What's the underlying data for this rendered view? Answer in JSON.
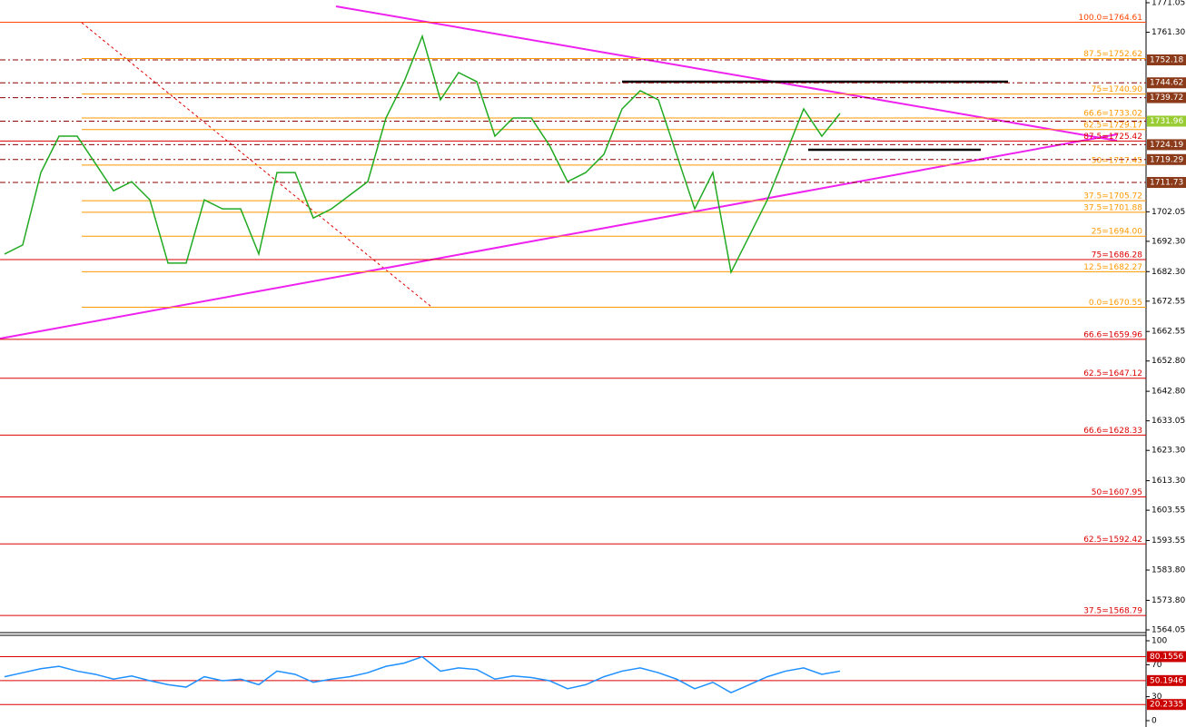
{
  "chart_data": [
    {
      "type": "line",
      "color": "#22aa22",
      "values": [
        1688.1,
        1691.1,
        1715.0,
        1727.0,
        1727.0,
        1718.0,
        1709.0,
        1712.0,
        1706.0,
        1685.1,
        1685.1,
        1706.0,
        1703.0,
        1703.0,
        1688.1,
        1715.0,
        1715.0,
        1700.0,
        1703.0,
        1707.5,
        1712.0,
        1733.0,
        1745.0,
        1760.0,
        1739.0,
        1748.0,
        1745.0,
        1727.0,
        1733.0,
        1733.0,
        1724.0,
        1712.0,
        1715.0,
        1721.0,
        1736.0,
        1742.0,
        1739.0,
        1721.0,
        1703.0,
        1715.0,
        1682.1,
        1694.0,
        1706.0,
        1721.0,
        1736.0,
        1727.0,
        1734.5
      ],
      "ylim": [
        1564.05,
        1771.05
      ],
      "yticks": [
        {
          "value": 1771.05,
          "label": "1771.05"
        },
        {
          "value": 1761.3,
          "label": "1761.30"
        },
        {
          "value": 1702.05,
          "label": "1702.05"
        },
        {
          "value": 1692.3,
          "label": "1692.30"
        },
        {
          "value": 1682.3,
          "label": "1682.30"
        },
        {
          "value": 1672.55,
          "label": "1672.55"
        },
        {
          "value": 1662.55,
          "label": "1662.55"
        },
        {
          "value": 1652.8,
          "label": "1652.80"
        },
        {
          "value": 1642.8,
          "label": "1642.80"
        },
        {
          "value": 1633.05,
          "label": "1633.05"
        },
        {
          "value": 1623.3,
          "label": "1623.30"
        },
        {
          "value": 1613.3,
          "label": "1613.30"
        },
        {
          "value": 1603.55,
          "label": "1603.55"
        },
        {
          "value": 1593.55,
          "label": "1593.55"
        },
        {
          "value": 1583.8,
          "label": "1583.80"
        },
        {
          "value": 1573.8,
          "label": "1573.80"
        },
        {
          "value": 1564.05,
          "label": "1564.05"
        }
      ],
      "levels": [
        {
          "value": 1764.61,
          "label": "100.0=1764.61",
          "color": "#ff4500"
        },
        {
          "value": 1752.62,
          "label": "87.5=1752.62",
          "color": "#ff9900"
        },
        {
          "value": 1740.9,
          "label": "75=1740.90",
          "color": "#ff9900"
        },
        {
          "value": 1733.02,
          "label": "66.6=1733.02",
          "color": "#ff9900"
        },
        {
          "value": 1729.17,
          "label": "62.5=1729.17",
          "color": "#ff9900"
        },
        {
          "value": 1725.42,
          "label": "87.5=1725.42",
          "color": "#dd0000"
        },
        {
          "value": 1717.45,
          "label": "50=1717.45",
          "color": "#ff9900"
        },
        {
          "value": 1705.72,
          "label": "37.5=1705.72",
          "color": "#ff9900"
        },
        {
          "value": 1701.88,
          "label": "37.5=1701.88",
          "color": "#ff9900"
        },
        {
          "value": 1694.0,
          "label": "25=1694.00",
          "color": "#ff9900"
        },
        {
          "value": 1686.28,
          "label": "75=1686.28",
          "color": "#dd0000"
        },
        {
          "value": 1682.27,
          "label": "12.5=1682.27",
          "color": "#ff9900"
        },
        {
          "value": 1670.55,
          "label": "0.0=1670.55",
          "color": "#ff9900"
        },
        {
          "value": 1659.96,
          "label": "66.6=1659.96",
          "color": "#dd0000"
        },
        {
          "value": 1647.12,
          "label": "62.5=1647.12",
          "color": "#dd0000"
        },
        {
          "value": 1628.33,
          "label": "66.6=1628.33",
          "color": "#dd0000"
        },
        {
          "value": 1607.95,
          "label": "50=1607.95",
          "color": "#dd0000"
        },
        {
          "value": 1592.42,
          "label": "62.5=1592.42",
          "color": "#dd0000"
        },
        {
          "value": 1568.79,
          "label": "37.5=1568.79",
          "color": "#dd0000"
        }
      ],
      "price_tags": [
        {
          "value": 1752.18,
          "color": "#8b3a1a"
        },
        {
          "value": 1744.62,
          "color": "#8b3a1a"
        },
        {
          "value": 1739.72,
          "color": "#8b3a1a"
        },
        {
          "value": 1731.96,
          "color": "#99cc33"
        },
        {
          "value": 1724.19,
          "color": "#8b3a1a"
        },
        {
          "value": 1719.29,
          "color": "#8b3a1a"
        },
        {
          "value": 1711.73,
          "color": "#8b3a1a"
        }
      ]
    },
    {
      "type": "line",
      "color": "#1e90ff",
      "values": [
        55,
        60,
        65,
        68,
        62,
        58,
        52,
        56,
        50,
        45,
        42,
        55,
        50,
        52,
        45,
        62,
        58,
        48,
        52,
        55,
        60,
        68,
        72,
        80,
        62,
        66,
        64,
        52,
        56,
        54,
        50,
        40,
        45,
        55,
        62,
        66,
        60,
        52,
        40,
        48,
        35,
        45,
        55,
        62,
        66,
        58,
        62
      ],
      "ylim": [
        0,
        100
      ],
      "yticks": [
        0,
        30,
        70,
        100
      ],
      "levels": [
        80.1556,
        50.1946,
        20.2335
      ]
    }
  ]
}
